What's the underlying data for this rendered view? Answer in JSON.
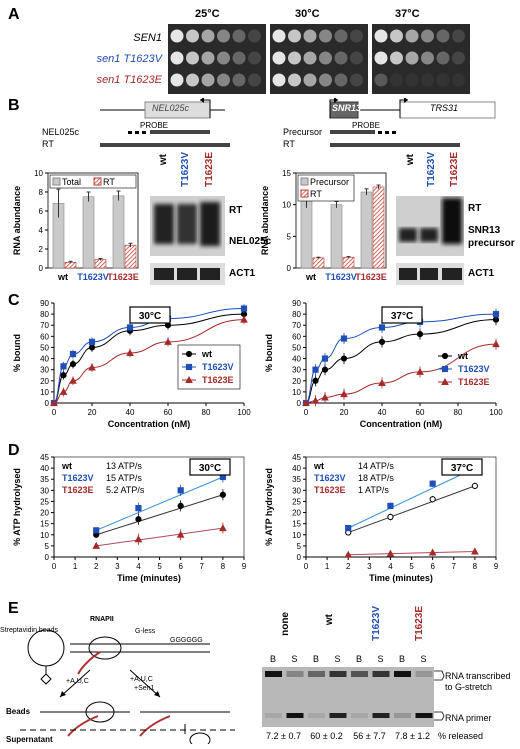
{
  "panels": {
    "A": "A",
    "B": "B",
    "C": "C",
    "D": "D",
    "E": "E"
  },
  "panelA": {
    "temps": [
      "25°C",
      "30°C",
      "37°C"
    ],
    "strains": [
      {
        "label": "SEN1",
        "color": "#000000"
      },
      {
        "label": "sen1 T1623V",
        "color": "#1f4fb7"
      },
      {
        "label": "sen1 T1623E",
        "color": "#a52a2a"
      }
    ]
  },
  "panelB": {
    "left": {
      "gene": "NEL025c",
      "probe": "PROBE",
      "track1": "NEL025c",
      "track2": "RT",
      "legend": [
        "Total",
        "RT"
      ],
      "ylabel": "RNA abundance",
      "ytick_labels": [
        "0",
        "2",
        "4",
        "6",
        "8",
        "10"
      ],
      "categories": [
        "wt",
        "T1623V",
        "T1623E"
      ],
      "blot_lanes": [
        "wt",
        "T1623V",
        "T1623E"
      ],
      "blot_labels": [
        "RT",
        "NEL025c",
        "ACT1"
      ]
    },
    "right": {
      "gene1": "SNR13",
      "gene2": "TRS31",
      "probe": "PROBE",
      "track1": "Precursor",
      "track2": "RT",
      "legend": [
        "Precursor",
        "RT"
      ],
      "ylabel": "RNA abundance",
      "ytick_labels": [
        "0",
        "5",
        "10",
        "15"
      ],
      "categories": [
        "wt",
        "T1623V",
        "T1623E"
      ],
      "blot_lanes": [
        "wt",
        "T1623V",
        "T1623E"
      ],
      "blot_labels": [
        "RT",
        "SNR13",
        "precursor",
        "ACT1"
      ]
    }
  },
  "panelC": {
    "left_temp": "30°C",
    "right_temp": "37°C",
    "ylabel": "% bound",
    "xlabel": "Concentration (nM)",
    "yticks": [
      "0",
      "10",
      "20",
      "30",
      "40",
      "50",
      "60",
      "70",
      "80",
      "90"
    ],
    "xticks": [
      "0",
      "20",
      "40",
      "60",
      "80",
      "100"
    ],
    "legend": [
      "wt",
      "T1623V",
      "T1623E"
    ]
  },
  "panelD": {
    "left_temp": "30°C",
    "right_temp": "37°C",
    "ylabel": "% ATP hydrolysed",
    "xlabel": "Time (minutes)",
    "left_yticks": [
      "0",
      "5",
      "10",
      "15",
      "20",
      "25",
      "30",
      "35",
      "40",
      "45"
    ],
    "right_yticks": [
      "0",
      "5",
      "10",
      "15",
      "20",
      "25",
      "30",
      "35",
      "40",
      "45"
    ],
    "xticks": [
      "0",
      "1",
      "2",
      "3",
      "4",
      "5",
      "6",
      "7",
      "8",
      "9"
    ],
    "left_rates": [
      {
        "name": "wt",
        "rate": "13 ATP/s"
      },
      {
        "name": "T1623V",
        "rate": "15 ATP/s"
      },
      {
        "name": "T1623E",
        "rate": "5.2 ATP/s"
      }
    ],
    "right_rates": [
      {
        "name": "wt",
        "rate": "14 ATP/s"
      },
      {
        "name": "T1623V",
        "rate": "18 ATP/s"
      },
      {
        "name": "T1623E",
        "rate": "1 ATP/s"
      }
    ]
  },
  "panelE": {
    "schematic": {
      "beads": "Streptavidin beads",
      "rnap": "RNAPII",
      "gless": "G-less",
      "cond1": "+A,U,C",
      "cond2": "+A,U,C",
      "cond2b": "+Sen1",
      "beads_label": "Beads",
      "super_label": "Supernatant"
    },
    "lanes": [
      "none",
      "wt",
      "T1623V",
      "T1623E"
    ],
    "bs": [
      "B",
      "S",
      "B",
      "S",
      "B",
      "S",
      "B",
      "S"
    ],
    "released": [
      "7.2 ± 0.7",
      "60 ± 0.2",
      "56 ± 7.7",
      "7.8 ± 1.2"
    ],
    "released_label": "% released",
    "band_labels": [
      "RNA transcribed",
      "to G-stretch",
      "RNA primer"
    ]
  },
  "chart_data": [
    {
      "type": "bar",
      "id": "B-left",
      "ylabel": "RNA abundance",
      "ylim": [
        0,
        10
      ],
      "categories": [
        "wt",
        "T1623V",
        "T1623E"
      ],
      "series": [
        {
          "name": "Total",
          "values": [
            6.8,
            7.5,
            7.6
          ],
          "errors": [
            1.5,
            0.5,
            0.5
          ]
        },
        {
          "name": "RT",
          "values": [
            0.6,
            0.9,
            2.4
          ],
          "errors": [
            0.1,
            0.1,
            0.2
          ]
        }
      ]
    },
    {
      "type": "bar",
      "id": "B-right",
      "ylabel": "RNA abundance",
      "ylim": [
        0,
        15
      ],
      "categories": [
        "wt",
        "T1623V",
        "T1623E"
      ],
      "series": [
        {
          "name": "Precursor",
          "values": [
            11,
            10,
            12
          ],
          "errors": [
            1.5,
            0.5,
            0.5
          ]
        },
        {
          "name": "RT",
          "values": [
            1.6,
            1.7,
            12.8
          ],
          "errors": [
            0.1,
            0.1,
            0.3
          ]
        }
      ]
    },
    {
      "type": "line",
      "id": "C-left",
      "title": "30°C",
      "xlabel": "Concentration (nM)",
      "ylabel": "% bound",
      "xlim": [
        0,
        100
      ],
      "ylim": [
        0,
        90
      ],
      "x": [
        0,
        5,
        10,
        20,
        40,
        60,
        100
      ],
      "series": [
        {
          "name": "wt",
          "values": [
            0,
            25,
            35,
            50,
            65,
            70,
            80
          ]
        },
        {
          "name": "T1623V",
          "values": [
            0,
            33,
            44,
            55,
            68,
            76,
            85
          ]
        },
        {
          "name": "T1623E",
          "values": [
            0,
            10,
            20,
            32,
            45,
            55,
            75
          ]
        }
      ]
    },
    {
      "type": "line",
      "id": "C-right",
      "title": "37°C",
      "xlabel": "Concentration (nM)",
      "ylabel": "% bound",
      "xlim": [
        0,
        100
      ],
      "ylim": [
        0,
        90
      ],
      "x": [
        0,
        5,
        10,
        20,
        40,
        60,
        100
      ],
      "series": [
        {
          "name": "wt",
          "values": [
            0,
            20,
            30,
            40,
            55,
            62,
            75
          ]
        },
        {
          "name": "T1623V",
          "values": [
            0,
            30,
            40,
            58,
            68,
            73,
            80
          ]
        },
        {
          "name": "T1623E",
          "values": [
            0,
            2,
            5,
            8,
            18,
            28,
            53
          ]
        }
      ]
    },
    {
      "type": "line",
      "id": "D-left",
      "title": "30°C",
      "xlabel": "Time (minutes)",
      "ylabel": "% ATP hydrolysed",
      "xlim": [
        0,
        9
      ],
      "ylim": [
        0,
        45
      ],
      "x": [
        2,
        4,
        6,
        8
      ],
      "series": [
        {
          "name": "wt",
          "values": [
            10,
            17,
            23,
            28
          ]
        },
        {
          "name": "T1623V",
          "values": [
            12,
            22,
            30,
            36
          ]
        },
        {
          "name": "T1623E",
          "values": [
            5,
            8,
            10,
            13
          ]
        }
      ]
    },
    {
      "type": "line",
      "id": "D-right",
      "title": "37°C",
      "xlabel": "Time (minutes)",
      "ylabel": "% ATP hydrolysed",
      "xlim": [
        0,
        9
      ],
      "ylim": [
        0,
        45
      ],
      "x": [
        2,
        4,
        6,
        8
      ],
      "series": [
        {
          "name": "wt",
          "values": [
            11,
            18,
            26,
            32
          ]
        },
        {
          "name": "T1623V",
          "values": [
            13,
            23,
            33,
            40
          ]
        },
        {
          "name": "T1623E",
          "values": [
            1,
            1.5,
            2,
            2.5
          ]
        }
      ]
    }
  ]
}
